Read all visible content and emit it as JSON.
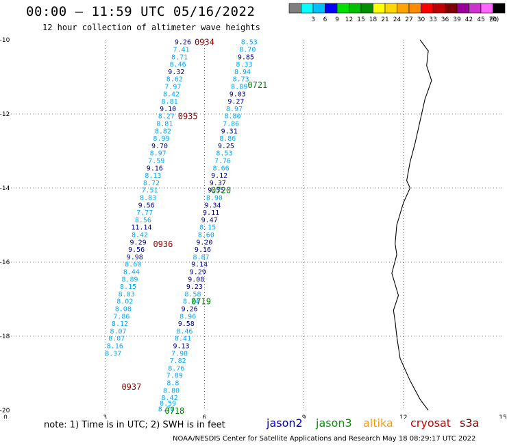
{
  "header": {
    "title": "00:00 – 11:59 UTC 05/16/2022",
    "subtitle": "12 hour collection of altimeter wave heights"
  },
  "legend": {
    "labels": [
      "3",
      "6",
      "9",
      "12",
      "15",
      "18",
      "21",
      "24",
      "27",
      "30",
      "33",
      "36",
      "39",
      "42",
      "45",
      "70"
    ],
    "unit": "(ft)",
    "colors": [
      "#7f7f7f",
      "#00ffff",
      "#00bfff",
      "#0000ff",
      "#00e000",
      "#00c000",
      "#009000",
      "#ffff00",
      "#ffd700",
      "#ffa500",
      "#ff8c00",
      "#ff0000",
      "#c00000",
      "#800000",
      "#990099",
      "#cc33cc",
      "#ff66ff",
      "#000000"
    ]
  },
  "axes": {
    "x_ticks": [
      "0",
      "3",
      "6",
      "9",
      "12",
      "15"
    ],
    "y_ticks": [
      "-10",
      "-12",
      "-14",
      "-16",
      "-18",
      "-20"
    ],
    "xlim": [
      0,
      15
    ],
    "ylim": [
      -20,
      -10
    ],
    "grid": true
  },
  "tracks": [
    {
      "name": "pass-0934-0937",
      "points": [
        {
          "lat": -10.05,
          "lon": 5.35,
          "v": "9.26"
        },
        {
          "lat": -10.25,
          "lon": 5.3,
          "v": "7.41"
        },
        {
          "lat": -10.45,
          "lon": 5.25,
          "v": "8.71"
        },
        {
          "lat": -10.65,
          "lon": 5.2,
          "v": "8.46"
        },
        {
          "lat": -10.85,
          "lon": 5.15,
          "v": "9.32"
        },
        {
          "lat": -11.05,
          "lon": 5.1,
          "v": "8.62"
        },
        {
          "lat": -11.25,
          "lon": 5.05,
          "v": "7.97"
        },
        {
          "lat": -11.45,
          "lon": 5.0,
          "v": "8.42"
        },
        {
          "lat": -11.65,
          "lon": 4.95,
          "v": "8.81"
        },
        {
          "lat": -11.85,
          "lon": 4.9,
          "v": "9.10"
        },
        {
          "lat": -12.05,
          "lon": 4.85,
          "v": "8.27"
        },
        {
          "lat": -12.25,
          "lon": 4.8,
          "v": "8.81"
        },
        {
          "lat": -12.45,
          "lon": 4.75,
          "v": "8.82"
        },
        {
          "lat": -12.65,
          "lon": 4.7,
          "v": "8.99"
        },
        {
          "lat": -12.85,
          "lon": 4.65,
          "v": "9.70"
        },
        {
          "lat": -13.05,
          "lon": 4.6,
          "v": "8.97"
        },
        {
          "lat": -13.25,
          "lon": 4.55,
          "v": "7.59"
        },
        {
          "lat": -13.45,
          "lon": 4.5,
          "v": "9.16"
        },
        {
          "lat": -13.65,
          "lon": 4.45,
          "v": "8.13"
        },
        {
          "lat": -13.85,
          "lon": 4.4,
          "v": "8.72"
        },
        {
          "lat": -14.05,
          "lon": 4.35,
          "v": "7.51"
        },
        {
          "lat": -14.25,
          "lon": 4.3,
          "v": "8.83"
        },
        {
          "lat": -14.45,
          "lon": 4.25,
          "v": "9.56"
        },
        {
          "lat": -14.65,
          "lon": 4.2,
          "v": "7.77"
        },
        {
          "lat": -14.85,
          "lon": 4.15,
          "v": "8.56"
        },
        {
          "lat": -15.05,
          "lon": 4.1,
          "v": "11.14"
        },
        {
          "lat": -15.25,
          "lon": 4.05,
          "v": "8.42"
        },
        {
          "lat": -15.45,
          "lon": 4.0,
          "v": "9.29"
        },
        {
          "lat": -15.65,
          "lon": 3.95,
          "v": "9.56"
        },
        {
          "lat": -15.85,
          "lon": 3.9,
          "v": "9.98"
        },
        {
          "lat": -16.05,
          "lon": 3.85,
          "v": "8.60"
        },
        {
          "lat": -16.25,
          "lon": 3.8,
          "v": "8.44"
        },
        {
          "lat": -16.45,
          "lon": 3.75,
          "v": "8.89"
        },
        {
          "lat": -16.65,
          "lon": 3.7,
          "v": "8.15"
        },
        {
          "lat": -16.85,
          "lon": 3.65,
          "v": "8.03"
        },
        {
          "lat": -17.05,
          "lon": 3.6,
          "v": "8.02"
        },
        {
          "lat": -17.25,
          "lon": 3.55,
          "v": "8.08"
        },
        {
          "lat": -17.45,
          "lon": 3.5,
          "v": "7.86"
        },
        {
          "lat": -17.65,
          "lon": 3.45,
          "v": "8.12"
        },
        {
          "lat": -17.85,
          "lon": 3.4,
          "v": "8.07"
        },
        {
          "lat": -18.05,
          "lon": 3.35,
          "v": "8.07"
        },
        {
          "lat": -18.25,
          "lon": 3.3,
          "v": "8.16"
        },
        {
          "lat": -18.45,
          "lon": 3.25,
          "v": "8.37"
        }
      ]
    },
    {
      "name": "pass-0721-0718",
      "points": [
        {
          "lat": -10.05,
          "lon": 7.35,
          "v": "8.53"
        },
        {
          "lat": -10.25,
          "lon": 7.3,
          "v": "8.70"
        },
        {
          "lat": -10.45,
          "lon": 7.25,
          "v": "9.85"
        },
        {
          "lat": -10.65,
          "lon": 7.2,
          "v": "8.33"
        },
        {
          "lat": -10.85,
          "lon": 7.15,
          "v": "8.94"
        },
        {
          "lat": -11.05,
          "lon": 7.1,
          "v": "8.73"
        },
        {
          "lat": -11.25,
          "lon": 7.05,
          "v": "8.89"
        },
        {
          "lat": -11.45,
          "lon": 7.0,
          "v": "9.03"
        },
        {
          "lat": -11.65,
          "lon": 6.95,
          "v": "9.27"
        },
        {
          "lat": -11.85,
          "lon": 6.9,
          "v": "8.97"
        },
        {
          "lat": -12.05,
          "lon": 6.85,
          "v": "8.80"
        },
        {
          "lat": -12.25,
          "lon": 6.8,
          "v": "7.86"
        },
        {
          "lat": -12.45,
          "lon": 6.75,
          "v": "9.31"
        },
        {
          "lat": -12.65,
          "lon": 6.7,
          "v": "8.86"
        },
        {
          "lat": -12.85,
          "lon": 6.65,
          "v": "9.25"
        },
        {
          "lat": -13.05,
          "lon": 6.6,
          "v": "8.53"
        },
        {
          "lat": -13.25,
          "lon": 6.55,
          "v": "7.76"
        },
        {
          "lat": -13.45,
          "lon": 6.5,
          "v": "8.66"
        },
        {
          "lat": -13.65,
          "lon": 6.45,
          "v": "9.12"
        },
        {
          "lat": -13.85,
          "lon": 6.4,
          "v": "9.37"
        },
        {
          "lat": -14.05,
          "lon": 6.35,
          "v": "9.55"
        },
        {
          "lat": -14.25,
          "lon": 6.3,
          "v": "8.90"
        },
        {
          "lat": -14.45,
          "lon": 6.25,
          "v": "9.34"
        },
        {
          "lat": -14.65,
          "lon": 6.2,
          "v": "9.11"
        },
        {
          "lat": -14.85,
          "lon": 6.15,
          "v": "9.47"
        },
        {
          "lat": -15.05,
          "lon": 6.1,
          "v": "8.15"
        },
        {
          "lat": -15.25,
          "lon": 6.05,
          "v": "8.60"
        },
        {
          "lat": -15.45,
          "lon": 6.0,
          "v": "9.20"
        },
        {
          "lat": -15.65,
          "lon": 5.95,
          "v": "9.16"
        },
        {
          "lat": -15.85,
          "lon": 5.9,
          "v": "8.87"
        },
        {
          "lat": -16.05,
          "lon": 5.85,
          "v": "9.14"
        },
        {
          "lat": -16.25,
          "lon": 5.8,
          "v": "9.29"
        },
        {
          "lat": -16.45,
          "lon": 5.75,
          "v": "9.08"
        },
        {
          "lat": -16.65,
          "lon": 5.7,
          "v": "9.23"
        },
        {
          "lat": -16.85,
          "lon": 5.65,
          "v": "8.58"
        },
        {
          "lat": -17.05,
          "lon": 5.6,
          "v": "8.74"
        },
        {
          "lat": -17.25,
          "lon": 5.55,
          "v": "9.26"
        },
        {
          "lat": -17.45,
          "lon": 5.5,
          "v": "8.96"
        },
        {
          "lat": -17.65,
          "lon": 5.45,
          "v": "9.58"
        },
        {
          "lat": -17.85,
          "lon": 5.4,
          "v": "8.46"
        },
        {
          "lat": -18.05,
          "lon": 5.35,
          "v": "8.41"
        },
        {
          "lat": -18.25,
          "lon": 5.3,
          "v": "9.13"
        },
        {
          "lat": -18.45,
          "lon": 5.25,
          "v": "7.98"
        },
        {
          "lat": -18.65,
          "lon": 5.2,
          "v": "7.82"
        },
        {
          "lat": -18.85,
          "lon": 5.15,
          "v": "8.76"
        },
        {
          "lat": -19.05,
          "lon": 5.1,
          "v": "7.89"
        },
        {
          "lat": -19.25,
          "lon": 5.05,
          "v": "8.8"
        },
        {
          "lat": -19.45,
          "lon": 5.0,
          "v": "8.80"
        },
        {
          "lat": -19.65,
          "lon": 4.95,
          "v": "8.42"
        },
        {
          "lat": -19.8,
          "lon": 4.9,
          "v": "8.59"
        },
        {
          "lat": -19.95,
          "lon": 4.85,
          "v": "8.70"
        }
      ]
    }
  ],
  "time_labels": [
    {
      "text": "0934",
      "lat": -10.05,
      "lon": 6.0,
      "sat": "cryosat"
    },
    {
      "text": "0935",
      "lat": -12.05,
      "lon": 5.5,
      "sat": "cryosat"
    },
    {
      "text": "0936",
      "lat": -15.5,
      "lon": 4.75,
      "sat": "cryosat"
    },
    {
      "text": "0937",
      "lat": -19.35,
      "lon": 3.8,
      "sat": "cryosat"
    },
    {
      "text": "0721",
      "lat": -11.2,
      "lon": 7.6,
      "sat": "jason3"
    },
    {
      "text": "0720",
      "lat": -14.05,
      "lon": 6.5,
      "sat": "jason3"
    },
    {
      "text": "0719",
      "lat": -17.05,
      "lon": 5.9,
      "sat": "jason3"
    },
    {
      "text": "0718",
      "lat": -20.0,
      "lon": 5.1,
      "sat": "jason3"
    }
  ],
  "coastline": [
    [
      12.5,
      -10
    ],
    [
      12.75,
      -10.3
    ],
    [
      12.7,
      -10.7
    ],
    [
      12.85,
      -11.1
    ],
    [
      12.65,
      -11.6
    ],
    [
      12.5,
      -12.2
    ],
    [
      12.35,
      -12.8
    ],
    [
      12.2,
      -13.3
    ],
    [
      12.1,
      -13.8
    ],
    [
      12.2,
      -14.0
    ],
    [
      12.0,
      -14.4
    ],
    [
      11.8,
      -15.0
    ],
    [
      11.75,
      -15.5
    ],
    [
      11.8,
      -15.8
    ],
    [
      11.65,
      -16.3
    ],
    [
      11.75,
      -16.6
    ],
    [
      11.85,
      -16.9
    ],
    [
      11.7,
      -17.3
    ],
    [
      11.75,
      -17.6
    ],
    [
      11.8,
      -18.0
    ],
    [
      11.9,
      -18.6
    ],
    [
      12.2,
      -19.2
    ],
    [
      12.5,
      -19.7
    ],
    [
      12.75,
      -20.0
    ]
  ],
  "notes": {
    "note": "note: 1) Time is in UTC; 2) SWH is in feet",
    "credit": "NOAA/NESDIS Center for Satellite Applications and Research    May 18 08:29:17 UTC 2022"
  },
  "satellites": [
    {
      "name": "jason2",
      "color": "#0000cc"
    },
    {
      "name": "jason3",
      "color": "#009900"
    },
    {
      "name": "altika",
      "color": "#ff9900"
    },
    {
      "name": "cryosat",
      "color": "#cc0000"
    },
    {
      "name": "s3a",
      "color": "#880000"
    }
  ]
}
